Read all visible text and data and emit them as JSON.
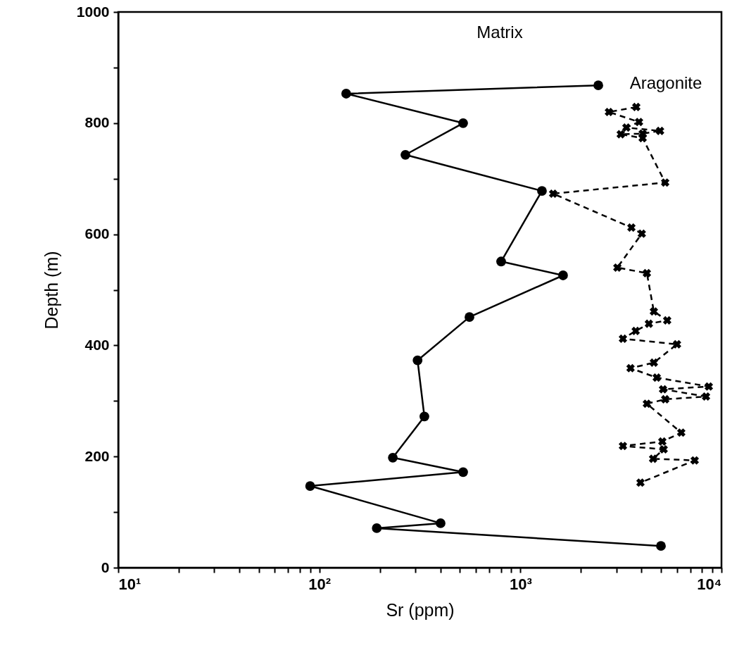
{
  "chart_data": {
    "type": "line",
    "xlabel": "Sr (ppm)",
    "ylabel": "Depth (m)",
    "log": "x",
    "grid": false,
    "xlim": [
      10,
      10000
    ],
    "ylim": [
      0,
      1000
    ],
    "xticks": [
      {
        "value": 10,
        "label": "10¹"
      },
      {
        "value": 20,
        "label": null
      },
      {
        "value": 30,
        "label": null
      },
      {
        "value": 40,
        "label": null
      },
      {
        "value": 50,
        "label": null
      },
      {
        "value": 60,
        "label": null
      },
      {
        "value": 70,
        "label": null
      },
      {
        "value": 80,
        "label": null
      },
      {
        "value": 90,
        "label": null
      },
      {
        "value": 100,
        "label": "10²"
      },
      {
        "value": 200,
        "label": null
      },
      {
        "value": 300,
        "label": null
      },
      {
        "value": 400,
        "label": null
      },
      {
        "value": 500,
        "label": null
      },
      {
        "value": 600,
        "label": null
      },
      {
        "value": 700,
        "label": null
      },
      {
        "value": 800,
        "label": null
      },
      {
        "value": 900,
        "label": null
      },
      {
        "value": 1000,
        "label": "10³"
      },
      {
        "value": 2000,
        "label": null
      },
      {
        "value": 3000,
        "label": null
      },
      {
        "value": 4000,
        "label": null
      },
      {
        "value": 5000,
        "label": null
      },
      {
        "value": 6000,
        "label": null
      },
      {
        "value": 7000,
        "label": null
      },
      {
        "value": 8000,
        "label": null
      },
      {
        "value": 9000,
        "label": null
      },
      {
        "value": 10000,
        "label": "10⁴"
      }
    ],
    "yticks": [
      0,
      {
        "value": 100,
        "label": null
      },
      200,
      {
        "value": 300,
        "label": null
      },
      400,
      {
        "value": 500,
        "label": null
      },
      600,
      {
        "value": 700,
        "label": null
      },
      800,
      {
        "value": 900,
        "label": null
      },
      1000
    ],
    "series": [
      {
        "name": "Matrix",
        "color": "#000000",
        "marker": "circle",
        "line_style": "solid",
        "x": [
          2440,
          136,
          519,
          268,
          1280,
          802,
          1630,
          558,
          308,
          333,
          232,
          519,
          90,
          401,
          193,
          5000
        ],
        "values": [
          868,
          853,
          800,
          743,
          678,
          551,
          526,
          451,
          373,
          272,
          198,
          172,
          147,
          80,
          71,
          39
        ]
      },
      {
        "name": "Aragonite",
        "color": "#000000",
        "marker": "cross",
        "line_style": "dashed",
        "x": [
          3770,
          2755,
          3890,
          3365,
          4950,
          4055,
          3155,
          4055,
          5250,
          1455,
          3565,
          4015,
          3035,
          4255,
          4610,
          5370,
          4355,
          3745,
          3235,
          6010,
          4610,
          3530,
          4765,
          8650,
          5120,
          8380,
          5250,
          4255,
          6310,
          5080,
          3235,
          5160,
          4570,
          7360,
          3955
        ],
        "values": [
          829,
          820,
          802,
          792,
          786,
          781,
          780,
          773,
          693,
          673,
          612,
          601,
          540,
          530,
          461,
          445,
          439,
          426,
          412,
          402,
          369,
          359,
          342,
          326,
          321,
          308,
          303,
          295,
          243,
          227,
          219,
          213,
          196,
          193,
          153
        ]
      }
    ]
  }
}
